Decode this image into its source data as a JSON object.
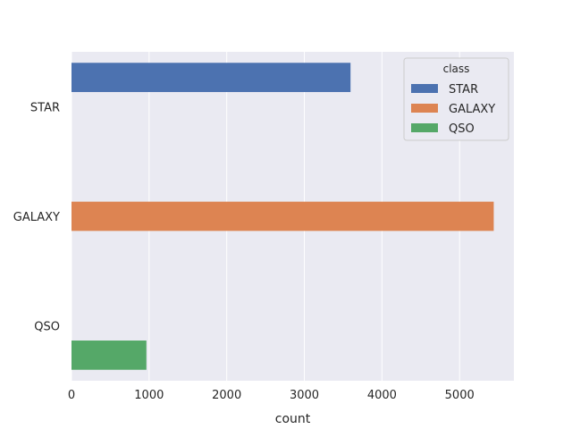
{
  "chart_data": {
    "type": "bar",
    "orientation": "horizontal",
    "title": "",
    "xlabel": "count",
    "ylabel": "",
    "xlim": [
      0,
      5700
    ],
    "x_ticks": [
      0,
      1000,
      2000,
      3000,
      4000,
      5000
    ],
    "categories": [
      "STAR",
      "GALAXY",
      "QSO"
    ],
    "grid": true,
    "legend": {
      "title": "class",
      "placement": "top-right",
      "entries": [
        "STAR",
        "GALAXY",
        "QSO"
      ]
    },
    "series": [
      {
        "name": "STAR",
        "color": "#4c72b0",
        "values": [
          3595,
          null,
          null
        ]
      },
      {
        "name": "GALAXY",
        "color": "#dd8452",
        "values": [
          null,
          5440,
          null
        ]
      },
      {
        "name": "QSO",
        "color": "#55a868",
        "values": [
          null,
          null,
          965
        ]
      }
    ]
  },
  "style": {
    "plot_background": "#eaeaf2",
    "grid_color": "#ffffff"
  }
}
